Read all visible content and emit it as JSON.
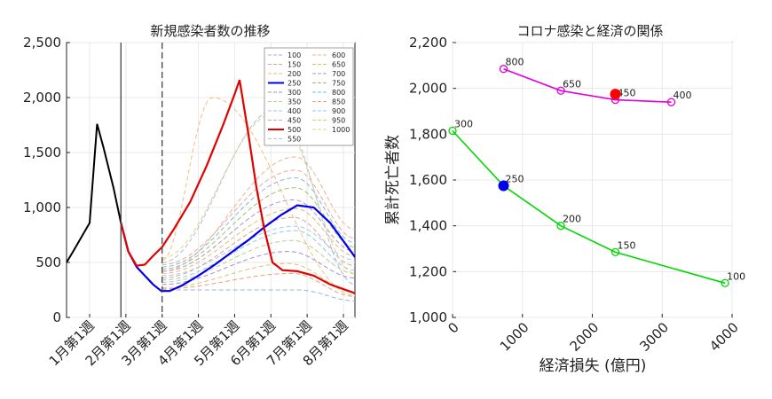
{
  "chart_data": [
    {
      "type": "line",
      "title": "新規感染者数の推移",
      "xlabel": "",
      "ylabel": "",
      "x_ticks": [
        "1月第1週",
        "2月第1週",
        "3月第1週",
        "4月第1週",
        "5月第1週",
        "6月第1週",
        "7月第1週",
        "8月第1週"
      ],
      "y_ticks": [
        "0",
        "500",
        "1,000",
        "1,500",
        "2,000",
        "2,500"
      ],
      "ylim": [
        0,
        2500
      ],
      "xlim": [
        0,
        35
      ],
      "grid": true,
      "legend_position": "top-right",
      "vlines": [
        {
          "x": 6.6,
          "style": "solid"
        },
        {
          "x": 11.6,
          "style": "dashed"
        }
      ],
      "history": {
        "x": [
          0,
          0.8,
          2.8,
          3.7,
          4.5,
          5.7,
          6.6
        ],
        "y": [
          500,
          600,
          860,
          1760,
          1540,
          1180,
          860
        ]
      },
      "series": [
        {
          "name": "100",
          "color": "#8fb8e0",
          "style": "dashed",
          "peak_x": 28.2,
          "peak_y": 250,
          "start_y": 250,
          "end_y": 150
        },
        {
          "name": "150",
          "color": "#e8a07a",
          "style": "dashed",
          "peak_x": 27.4,
          "peak_y": 400,
          "start_y": 260,
          "end_y": 190
        },
        {
          "name": "200",
          "color": "#e0c070",
          "style": "dashed",
          "peak_x": 27.0,
          "peak_y": 490,
          "start_y": 270,
          "end_y": 230
        },
        {
          "name": "250",
          "color": "#0000ee",
          "style": "solid",
          "peak_x": 28.0,
          "peak_y": 1020,
          "start_y": 600,
          "end_y": 550
        },
        {
          "name": "300",
          "color": "#a48bc8",
          "style": "dashed",
          "peak_x": 27.0,
          "peak_y": 600,
          "start_y": 300,
          "end_y": 360
        },
        {
          "name": "350",
          "color": "#b8d088",
          "style": "dashed",
          "peak_x": 27.5,
          "peak_y": 700,
          "start_y": 320,
          "end_y": 400
        },
        {
          "name": "400",
          "color": "#90c8e0",
          "style": "dashed",
          "peak_x": 27.8,
          "peak_y": 790,
          "start_y": 340,
          "end_y": 430
        },
        {
          "name": "450",
          "color": "#e0a090",
          "style": "dashed",
          "peak_x": 27.6,
          "peak_y": 910,
          "start_y": 360,
          "end_y": 470
        },
        {
          "name": "500",
          "color": "#e00000",
          "style": "solid",
          "peak_x": 21.0,
          "peak_y": 2160,
          "start_y": 600,
          "end_y": 220
        },
        {
          "name": "550",
          "color": "#a8c8e8",
          "style": "dashed",
          "peak_x": 27.8,
          "peak_y": 830,
          "start_y": 380,
          "end_y": 520
        },
        {
          "name": "600",
          "color": "#f0b090",
          "style": "dashed",
          "peak_x": 27.8,
          "peak_y": 1460,
          "start_y": 420,
          "end_y": 800
        },
        {
          "name": "650",
          "color": "#d8c070",
          "style": "dashed",
          "peak_x": 27.8,
          "peak_y": 990,
          "start_y": 400,
          "end_y": 560
        },
        {
          "name": "700",
          "color": "#b090d0",
          "style": "dashed",
          "peak_x": 27.6,
          "peak_y": 1070,
          "start_y": 420,
          "end_y": 600
        },
        {
          "name": "750",
          "color": "#a0c070",
          "style": "dashed",
          "peak_x": 27.8,
          "peak_y": 1180,
          "start_y": 440,
          "end_y": 640
        },
        {
          "name": "800",
          "color": "#80b8e0",
          "style": "dashed",
          "peak_x": 27.8,
          "peak_y": 1270,
          "start_y": 460,
          "end_y": 680
        },
        {
          "name": "850",
          "color": "#e8a898",
          "style": "dashed",
          "peak_x": 27.8,
          "peak_y": 1340,
          "start_y": 480,
          "end_y": 720
        },
        {
          "name": "900",
          "color": "#a0c0e8",
          "style": "dashed",
          "peak_x": 25.5,
          "peak_y": 1900,
          "start_y": 500,
          "end_y": 300
        },
        {
          "name": "950",
          "color": "#f0c080",
          "style": "dashed",
          "peak_x": 17.7,
          "peak_y": 2000,
          "start_y": 520,
          "end_y": 200
        },
        {
          "name": "1000",
          "color": "#e8d080",
          "style": "dashed",
          "peak_x": 25.3,
          "peak_y": 1860,
          "start_y": 540,
          "end_y": 400
        }
      ],
      "highlight": {
        "250": {
          "x": [
            6.6,
            7.5,
            8.5,
            9.5,
            10.5,
            11.5,
            12.5,
            14,
            16,
            18,
            20,
            22,
            24,
            26,
            28,
            30,
            32,
            35
          ],
          "y": [
            860,
            600,
            460,
            380,
            300,
            240,
            240,
            290,
            380,
            480,
            590,
            700,
            820,
            930,
            1020,
            1000,
            860,
            550
          ]
        },
        "500": {
          "x": [
            6.6,
            7.5,
            8.5,
            9.5,
            10.5,
            11.6,
            13,
            15,
            17,
            19,
            20.4,
            21.0,
            22,
            23,
            24,
            25,
            26.2,
            28,
            30,
            32,
            35
          ],
          "y": [
            860,
            600,
            470,
            480,
            560,
            640,
            800,
            1050,
            1380,
            1750,
            2030,
            2160,
            1700,
            1200,
            800,
            500,
            430,
            420,
            380,
            300,
            220
          ]
        }
      }
    },
    {
      "type": "scatter",
      "title": "コロナ感染と経済の関係",
      "xlabel": "経済損失 (億円)",
      "ylabel": "累計死亡者数",
      "x_ticks": [
        "0",
        "1000",
        "2000",
        "3000",
        "4000"
      ],
      "y_ticks": [
        "1,000",
        "1,200",
        "1,400",
        "1,600",
        "1,800",
        "2,000",
        "2,200"
      ],
      "xlim": [
        0,
        4000
      ],
      "ylim": [
        1000,
        2200
      ],
      "grid": true,
      "series": [
        {
          "name": "",
          "color": "#e000e0",
          "x": [
            730,
            1550,
            2330,
            3130
          ],
          "y": [
            2085,
            1990,
            1950,
            1940
          ],
          "labels": [
            "800",
            "650",
            "450",
            "400"
          ],
          "filled": [
            false,
            false,
            false,
            false
          ]
        },
        {
          "name": "",
          "color": "#00d800",
          "x": [
            0,
            730,
            1550,
            2330,
            3900
          ],
          "y": [
            1815,
            1575,
            1400,
            1285,
            1150
          ],
          "labels": [
            "300",
            "250",
            "200",
            "150",
            "100"
          ],
          "filled": [
            false,
            false,
            false,
            false,
            false
          ]
        }
      ],
      "markers": [
        {
          "series": "magenta",
          "x": 2330,
          "y": 1975,
          "color": "#ff0000"
        },
        {
          "series": "green",
          "x": 730,
          "y": 1575,
          "color": "#0000ee"
        }
      ]
    }
  ]
}
